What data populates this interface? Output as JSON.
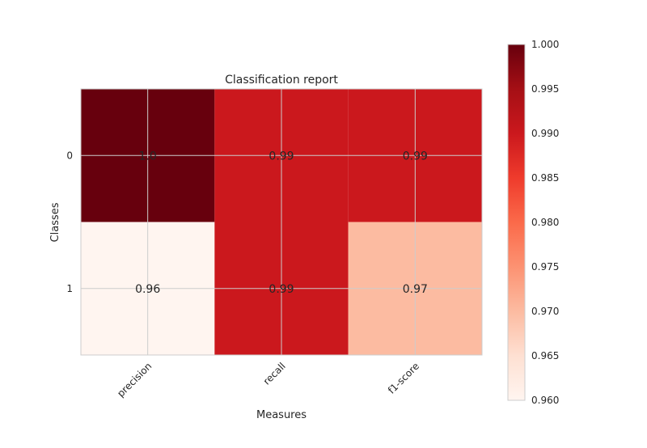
{
  "chart_data": {
    "type": "heatmap",
    "title": "Classification report",
    "xlabel": "Measures",
    "ylabel": "Classes",
    "x_categories": [
      "precision",
      "recall",
      "f1-score"
    ],
    "y_categories": [
      "0",
      "1"
    ],
    "values": [
      [
        1.0,
        0.99,
        0.99
      ],
      [
        0.96,
        0.99,
        0.97
      ]
    ],
    "cell_labels": [
      [
        "1.0",
        "0.99",
        "0.99"
      ],
      [
        "0.96",
        "0.99",
        "0.97"
      ]
    ],
    "colormap": "Reds",
    "colorbar": {
      "vmin": 0.96,
      "vmax": 1.0,
      "ticks": [
        "0.960",
        "0.965",
        "0.970",
        "0.975",
        "0.980",
        "0.985",
        "0.990",
        "0.995",
        "1.000"
      ]
    },
    "grid": true,
    "colors": {
      "cmap_stops": [
        "#fff5f0",
        "#fee0d2",
        "#fcbba1",
        "#fc9272",
        "#fb6a4a",
        "#ef3b2c",
        "#cb181d",
        "#a50f15",
        "#67000d"
      ],
      "grid": "#cccccc",
      "spine": "#cccccc",
      "text": "#262626"
    }
  }
}
